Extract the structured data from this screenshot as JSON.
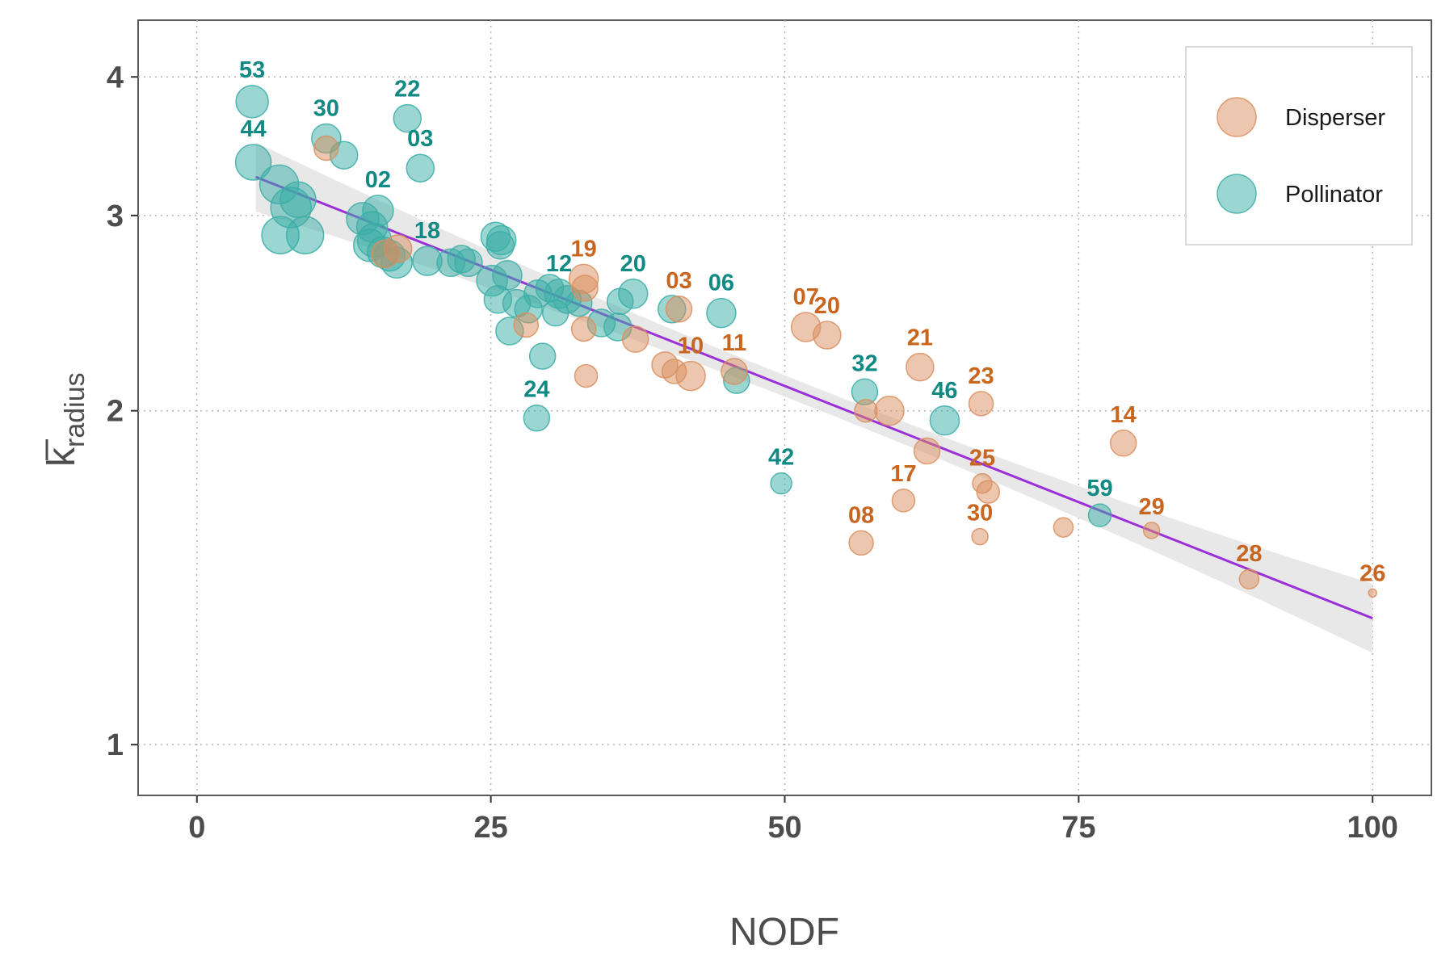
{
  "chart_data": {
    "type": "scatter",
    "xlabel": "NODF",
    "ylabel_main": "k",
    "ylabel_sub": "radius",
    "y_scale": "log",
    "xlim": [
      -5,
      105
    ],
    "ylim": [
      0.9,
      4.5
    ],
    "x_ticks": [
      0,
      25,
      50,
      75,
      100
    ],
    "x_tick_labels": [
      "0",
      "25",
      "50",
      "75",
      "100"
    ],
    "y_ticks": [
      1,
      2,
      3,
      4
    ],
    "y_tick_labels": [
      "1",
      "2",
      "3",
      "4"
    ],
    "grid": true,
    "legend_position": "top-right",
    "colors": {
      "Disperser": "#D98E5E",
      "Pollinator": "#3AADA6",
      "Disperser_label": "#C8651E",
      "Pollinator_label": "#128A84",
      "trend": "#9B30D9",
      "band": "#e6e6e6"
    },
    "legend": [
      {
        "name": "Disperser"
      },
      {
        "name": "Pollinator"
      }
    ],
    "trend_line": {
      "x": [
        5,
        100
      ],
      "y": [
        3.25,
        1.3
      ]
    },
    "series": [
      {
        "name": "Pollinator",
        "points": [
          {
            "x": 4.7,
            "y": 3.8,
            "label": "53",
            "size": 20
          },
          {
            "x": 4.8,
            "y": 3.35,
            "label": "44",
            "size": 22
          },
          {
            "x": 11.0,
            "y": 3.52,
            "label": "30",
            "size": 18
          },
          {
            "x": 17.9,
            "y": 3.67,
            "label": "22",
            "size": 17
          },
          {
            "x": 19.0,
            "y": 3.31,
            "label": "03",
            "size": 17
          },
          {
            "x": 15.4,
            "y": 3.03,
            "label": "02",
            "size": 19
          },
          {
            "x": 19.6,
            "y": 2.73,
            "label": "18",
            "size": 18
          },
          {
            "x": 30.8,
            "y": 2.55,
            "label": "12",
            "size": 18
          },
          {
            "x": 37.1,
            "y": 2.55,
            "label": "20",
            "size": 18
          },
          {
            "x": 44.6,
            "y": 2.45,
            "label": "06",
            "size": 18
          },
          {
            "x": 28.9,
            "y": 1.97,
            "label": "24",
            "size": 16
          },
          {
            "x": 56.8,
            "y": 2.08,
            "label": "32",
            "size": 16
          },
          {
            "x": 63.6,
            "y": 1.96,
            "label": "46",
            "size": 18
          },
          {
            "x": 49.7,
            "y": 1.72,
            "label": "42",
            "size": 13
          },
          {
            "x": 76.8,
            "y": 1.61,
            "label": "59",
            "size": 14
          },
          {
            "x": 7.0,
            "y": 3.2,
            "size": 24
          },
          {
            "x": 8.0,
            "y": 3.05,
            "size": 25
          },
          {
            "x": 8.6,
            "y": 3.1,
            "size": 22
          },
          {
            "x": 7.1,
            "y": 2.88,
            "size": 23
          },
          {
            "x": 9.2,
            "y": 2.88,
            "size": 23
          },
          {
            "x": 12.5,
            "y": 3.4,
            "size": 17
          },
          {
            "x": 14.1,
            "y": 2.98,
            "size": 20
          },
          {
            "x": 14.9,
            "y": 2.93,
            "size": 19
          },
          {
            "x": 15.1,
            "y": 2.85,
            "size": 21
          },
          {
            "x": 14.7,
            "y": 2.82,
            "size": 20
          },
          {
            "x": 15.8,
            "y": 2.78,
            "size": 19
          },
          {
            "x": 16.4,
            "y": 2.76,
            "size": 19
          },
          {
            "x": 17.0,
            "y": 2.72,
            "size": 19
          },
          {
            "x": 21.6,
            "y": 2.72,
            "size": 17
          },
          {
            "x": 22.5,
            "y": 2.74,
            "size": 17
          },
          {
            "x": 23.1,
            "y": 2.72,
            "size": 17
          },
          {
            "x": 25.4,
            "y": 2.87,
            "size": 18
          },
          {
            "x": 25.9,
            "y": 2.85,
            "size": 18
          },
          {
            "x": 25.8,
            "y": 2.82,
            "size": 17
          },
          {
            "x": 25.1,
            "y": 2.62,
            "size": 19
          },
          {
            "x": 26.4,
            "y": 2.65,
            "size": 18
          },
          {
            "x": 25.6,
            "y": 2.52,
            "size": 17
          },
          {
            "x": 27.2,
            "y": 2.5,
            "size": 17
          },
          {
            "x": 28.2,
            "y": 2.47,
            "size": 17
          },
          {
            "x": 29.0,
            "y": 2.55,
            "size": 17
          },
          {
            "x": 30.0,
            "y": 2.58,
            "size": 17
          },
          {
            "x": 31.5,
            "y": 2.52,
            "size": 17
          },
          {
            "x": 30.5,
            "y": 2.45,
            "size": 16
          },
          {
            "x": 26.6,
            "y": 2.36,
            "size": 17
          },
          {
            "x": 29.4,
            "y": 2.24,
            "size": 16
          },
          {
            "x": 32.5,
            "y": 2.5,
            "size": 16
          },
          {
            "x": 34.4,
            "y": 2.4,
            "size": 17
          },
          {
            "x": 35.8,
            "y": 2.38,
            "size": 17
          },
          {
            "x": 36.0,
            "y": 2.51,
            "size": 16
          },
          {
            "x": 40.4,
            "y": 2.47,
            "size": 17
          },
          {
            "x": 45.9,
            "y": 2.13,
            "size": 16
          }
        ]
      },
      {
        "name": "Disperser",
        "points": [
          {
            "x": 32.9,
            "y": 2.63,
            "label": "19",
            "size": 18
          },
          {
            "x": 41.0,
            "y": 2.47,
            "label": "03",
            "size": 16
          },
          {
            "x": 51.8,
            "y": 2.38,
            "label": "07",
            "size": 18
          },
          {
            "x": 53.6,
            "y": 2.34,
            "label": "20",
            "size": 17
          },
          {
            "x": 42.0,
            "y": 2.15,
            "label": "10",
            "size": 18
          },
          {
            "x": 45.7,
            "y": 2.17,
            "label": "11",
            "size": 16
          },
          {
            "x": 61.5,
            "y": 2.19,
            "label": "21",
            "size": 17
          },
          {
            "x": 66.7,
            "y": 2.03,
            "label": "23",
            "size": 15
          },
          {
            "x": 78.8,
            "y": 1.87,
            "label": "14",
            "size": 16
          },
          {
            "x": 66.8,
            "y": 1.72,
            "label": "25",
            "size": 12
          },
          {
            "x": 60.1,
            "y": 1.66,
            "label": "17",
            "size": 14
          },
          {
            "x": 56.5,
            "y": 1.52,
            "label": "08",
            "size": 15
          },
          {
            "x": 66.6,
            "y": 1.54,
            "label": "30",
            "size": 10
          },
          {
            "x": 81.2,
            "y": 1.56,
            "label": "29",
            "size": 10
          },
          {
            "x": 89.5,
            "y": 1.41,
            "label": "28",
            "size": 12
          },
          {
            "x": 100.0,
            "y": 1.37,
            "label": "26",
            "size": 5
          },
          {
            "x": 11.0,
            "y": 3.45,
            "size": 15
          },
          {
            "x": 17.1,
            "y": 2.8,
            "size": 17
          },
          {
            "x": 16.0,
            "y": 2.77,
            "size": 17
          },
          {
            "x": 33.0,
            "y": 2.58,
            "size": 16
          },
          {
            "x": 28.0,
            "y": 2.39,
            "size": 15
          },
          {
            "x": 32.9,
            "y": 2.37,
            "size": 15
          },
          {
            "x": 37.3,
            "y": 2.32,
            "size": 16
          },
          {
            "x": 33.1,
            "y": 2.15,
            "size": 14
          },
          {
            "x": 39.8,
            "y": 2.2,
            "size": 16
          },
          {
            "x": 40.6,
            "y": 2.17,
            "size": 15
          },
          {
            "x": 56.9,
            "y": 2.0,
            "size": 14
          },
          {
            "x": 58.9,
            "y": 2.0,
            "size": 18
          },
          {
            "x": 62.1,
            "y": 1.84,
            "size": 16
          },
          {
            "x": 67.3,
            "y": 1.69,
            "size": 14
          },
          {
            "x": 73.7,
            "y": 1.57,
            "size": 12
          }
        ]
      }
    ]
  }
}
